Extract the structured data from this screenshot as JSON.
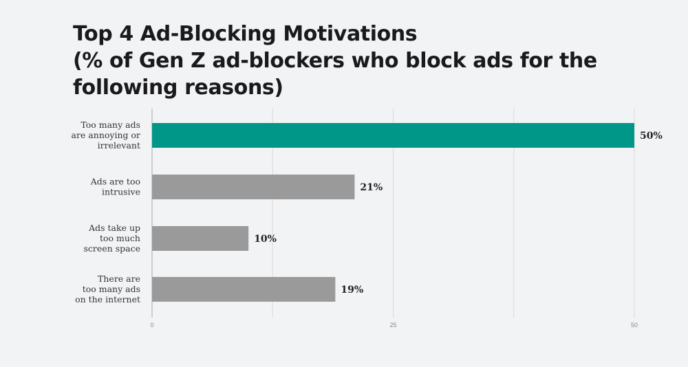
{
  "chart_data": {
    "type": "bar",
    "orientation": "horizontal",
    "title_lines": [
      "Top 4 Ad-Blocking Motivations",
      "(% of Gen Z ad-blockers who block ads for the",
      "following reasons)"
    ],
    "categories": [
      [
        "Too many ads",
        "are annoying or",
        "irrelevant"
      ],
      [
        "Ads are too",
        "intrusive"
      ],
      [
        "Ads take up",
        "too much",
        "screen space"
      ],
      [
        "There are",
        "too many ads",
        "on the internet"
      ]
    ],
    "values": [
      50,
      21,
      10,
      19
    ],
    "value_labels": [
      "50%",
      "21%",
      "10%",
      "19%"
    ],
    "xlim": [
      0,
      50
    ],
    "ticks": [
      0,
      25,
      50
    ],
    "tick_labels": [
      "0",
      "25",
      "50"
    ],
    "grid": true,
    "colors": {
      "highlight": "#009688",
      "default": "#9a9a9a",
      "grid": "#d9d9d9",
      "axis": "#b5b5b5"
    },
    "highlight_index": 0
  }
}
